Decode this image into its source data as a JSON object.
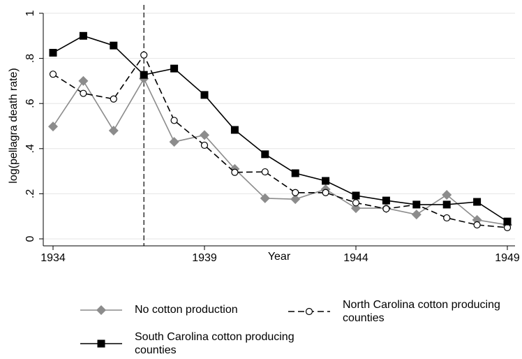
{
  "chart_data": {
    "type": "line",
    "x_label": "Year",
    "y_label": "log(pellagra death rate)",
    "x": [
      1934,
      1935,
      1936,
      1937,
      1938,
      1939,
      1940,
      1941,
      1942,
      1943,
      1944,
      1945,
      1946,
      1947,
      1948,
      1949
    ],
    "series": [
      {
        "name": "No cotton production",
        "color": "#8c8c8c",
        "marker": "diamond",
        "dash": false,
        "values": [
          0.498,
          0.7,
          0.48,
          0.71,
          0.43,
          0.46,
          0.31,
          0.18,
          0.176,
          0.22,
          0.136,
          0.136,
          0.108,
          0.195,
          0.084,
          0.062
        ]
      },
      {
        "name": "North Carolina cotton producing counties",
        "color": "#000000",
        "marker": "circle",
        "dash": true,
        "values": [
          0.73,
          0.645,
          0.62,
          0.815,
          0.525,
          0.415,
          0.295,
          0.297,
          0.205,
          0.205,
          0.16,
          0.133,
          0.152,
          0.093,
          0.062,
          0.05
        ]
      },
      {
        "name": "South Carolina cotton producing counties",
        "color": "#000000",
        "marker": "square",
        "dash": false,
        "values": [
          0.825,
          0.9,
          0.857,
          0.727,
          0.755,
          0.638,
          0.483,
          0.375,
          0.291,
          0.257,
          0.192,
          0.17,
          0.152,
          0.152,
          0.164,
          0.077
        ]
      }
    ],
    "xlim": [
      1934,
      1949
    ],
    "xticks": [
      1934,
      1939,
      1944,
      1949
    ],
    "ylim": [
      0,
      1
    ],
    "yticks": [
      0,
      {
        "value": 0.2,
        "label": ".2"
      },
      {
        "value": 0.4,
        "label": ".4"
      },
      {
        "value": 0.6,
        "label": ".6"
      },
      {
        "value": 0.8,
        "label": ".8"
      },
      1
    ],
    "grid": true,
    "vline": 1937,
    "legend": "bottom"
  }
}
